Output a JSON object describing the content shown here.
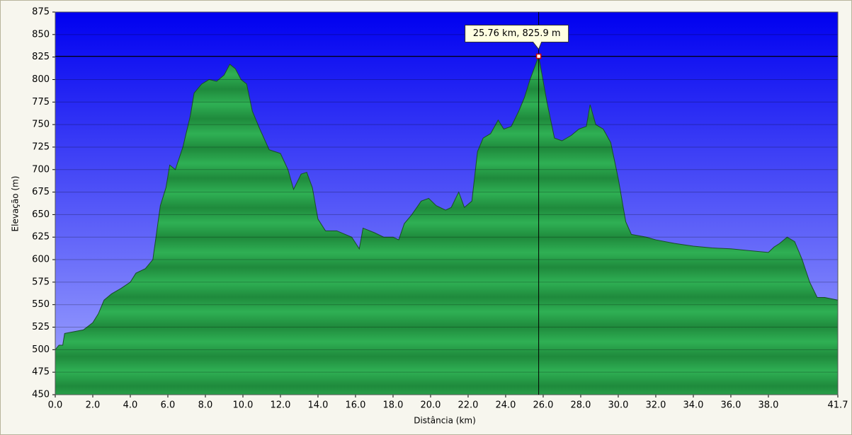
{
  "chart_data": {
    "type": "area",
    "x_label": "Distância   (km)",
    "y_label": "Elevação (m)",
    "color": "#2a9a48",
    "x": [
      0.0,
      0.2,
      0.4,
      0.5,
      1.0,
      1.5,
      2.0,
      2.3,
      2.6,
      3.0,
      3.5,
      4.0,
      4.3,
      4.8,
      5.2,
      5.4,
      5.6,
      5.9,
      6.1,
      6.4,
      6.8,
      7.2,
      7.4,
      7.8,
      8.2,
      8.6,
      9.0,
      9.3,
      9.6,
      9.9,
      10.2,
      10.5,
      10.9,
      11.4,
      12.0,
      12.4,
      12.7,
      13.1,
      13.4,
      13.7,
      14.0,
      14.4,
      15.0,
      15.8,
      16.2,
      16.4,
      17.0,
      17.5,
      18.0,
      18.3,
      18.6,
      19.0,
      19.5,
      19.9,
      20.3,
      20.8,
      21.1,
      21.5,
      21.8,
      22.2,
      22.5,
      22.8,
      23.2,
      23.6,
      23.9,
      24.3,
      24.7,
      25.0,
      25.3,
      25.76,
      26.2,
      26.6,
      27.0,
      27.5,
      27.9,
      28.3,
      28.5,
      28.8,
      29.2,
      29.6,
      30.0,
      30.4,
      30.7,
      31.5,
      32.0,
      33.0,
      34.0,
      35.0,
      36.0,
      37.0,
      38.0,
      38.3,
      38.6,
      39.0,
      39.4,
      39.8,
      40.2,
      40.6,
      41.0,
      41.7
    ],
    "values": [
      500,
      505,
      505,
      518,
      520,
      522,
      530,
      540,
      555,
      562,
      568,
      575,
      585,
      590,
      600,
      630,
      660,
      680,
      705,
      700,
      725,
      760,
      785,
      795,
      800,
      798,
      805,
      817,
      812,
      800,
      795,
      765,
      745,
      722,
      718,
      700,
      678,
      695,
      697,
      680,
      645,
      632,
      632,
      625,
      612,
      635,
      630,
      625,
      625,
      622,
      640,
      650,
      665,
      668,
      660,
      655,
      658,
      675,
      658,
      665,
      720,
      735,
      740,
      755,
      745,
      748,
      765,
      780,
      800,
      825.9,
      775,
      735,
      732,
      738,
      745,
      748,
      772,
      750,
      745,
      730,
      690,
      642,
      628,
      625,
      622,
      618,
      615,
      613,
      612,
      610,
      608,
      614,
      618,
      625,
      620,
      600,
      575,
      558,
      558,
      555
    ],
    "xlim": [
      0,
      41.7
    ],
    "ylim": [
      450,
      875
    ],
    "xticks": [
      {
        "value": 0,
        "label": "0.0"
      },
      {
        "value": 2,
        "label": "2.0"
      },
      {
        "value": 4,
        "label": "4.0"
      },
      {
        "value": 6,
        "label": "6.0"
      },
      {
        "value": 8,
        "label": "8.0"
      },
      {
        "value": 10,
        "label": "10.0"
      },
      {
        "value": 12,
        "label": "12.0"
      },
      {
        "value": 14,
        "label": "14.0"
      },
      {
        "value": 16,
        "label": "16.0"
      },
      {
        "value": 18,
        "label": "18.0"
      },
      {
        "value": 20,
        "label": "20.0"
      },
      {
        "value": 22,
        "label": "22.0"
      },
      {
        "value": 24,
        "label": "24.0"
      },
      {
        "value": 26,
        "label": "26.0"
      },
      {
        "value": 28,
        "label": "28.0"
      },
      {
        "value": 30,
        "label": "30.0"
      },
      {
        "value": 32,
        "label": "32.0"
      },
      {
        "value": 34,
        "label": "34.0"
      },
      {
        "value": 36,
        "label": "36.0"
      },
      {
        "value": 38,
        "label": "38.0"
      },
      41.7
    ],
    "yticks": [
      450,
      475,
      500,
      525,
      550,
      575,
      600,
      625,
      650,
      675,
      700,
      725,
      750,
      775,
      800,
      825,
      850,
      875
    ],
    "grid": true,
    "cursor": {
      "x": 25.76,
      "y": 825.9,
      "label": "25.76 km, 825.9 m"
    }
  }
}
